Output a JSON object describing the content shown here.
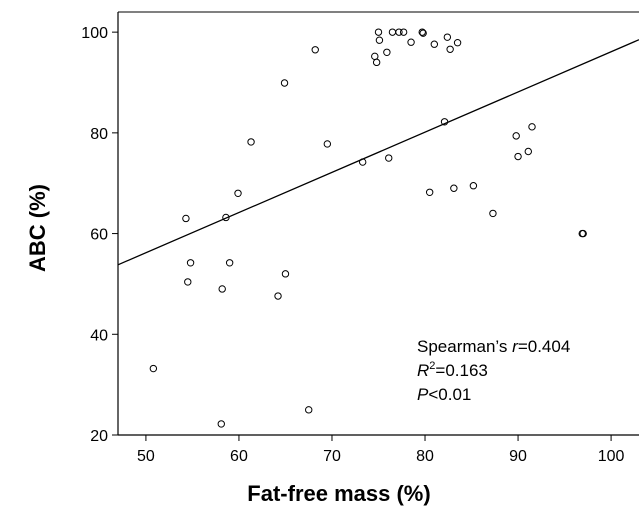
{
  "chart_data": {
    "type": "scatter",
    "title": "",
    "xlabel": "Fat-free mass (%)",
    "ylabel": "ABC (%)",
    "xlim": [
      47,
      103
    ],
    "ylim": [
      20,
      104
    ],
    "xticks": [
      50,
      60,
      70,
      80,
      90,
      100
    ],
    "yticks": [
      20,
      40,
      60,
      80,
      100
    ],
    "grid": false,
    "points": [
      {
        "x": 50.8,
        "y": 33.2
      },
      {
        "x": 54.3,
        "y": 63.0
      },
      {
        "x": 54.5,
        "y": 50.4
      },
      {
        "x": 54.8,
        "y": 54.2
      },
      {
        "x": 58.1,
        "y": 22.2
      },
      {
        "x": 58.2,
        "y": 49.0
      },
      {
        "x": 58.6,
        "y": 63.2
      },
      {
        "x": 59.0,
        "y": 54.2
      },
      {
        "x": 59.9,
        "y": 68.0
      },
      {
        "x": 61.3,
        "y": 78.2
      },
      {
        "x": 64.2,
        "y": 47.6
      },
      {
        "x": 64.9,
        "y": 89.9
      },
      {
        "x": 65.0,
        "y": 52.0
      },
      {
        "x": 67.5,
        "y": 25.0
      },
      {
        "x": 68.2,
        "y": 96.5
      },
      {
        "x": 69.5,
        "y": 77.8
      },
      {
        "x": 73.3,
        "y": 74.2
      },
      {
        "x": 74.6,
        "y": 95.2
      },
      {
        "x": 74.8,
        "y": 94.0
      },
      {
        "x": 75.0,
        "y": 100.0
      },
      {
        "x": 75.1,
        "y": 98.4
      },
      {
        "x": 75.9,
        "y": 96.0
      },
      {
        "x": 76.1,
        "y": 75.0
      },
      {
        "x": 76.5,
        "y": 100.0
      },
      {
        "x": 77.2,
        "y": 100.0
      },
      {
        "x": 77.7,
        "y": 100.0
      },
      {
        "x": 78.5,
        "y": 98.0
      },
      {
        "x": 79.7,
        "y": 100.0
      },
      {
        "x": 79.8,
        "y": 99.8
      },
      {
        "x": 80.5,
        "y": 68.2
      },
      {
        "x": 81.0,
        "y": 97.6
      },
      {
        "x": 82.1,
        "y": 82.2
      },
      {
        "x": 82.4,
        "y": 99.0
      },
      {
        "x": 82.7,
        "y": 96.6
      },
      {
        "x": 83.1,
        "y": 69.0
      },
      {
        "x": 83.5,
        "y": 97.9
      },
      {
        "x": 85.2,
        "y": 69.5
      },
      {
        "x": 87.3,
        "y": 64.0
      },
      {
        "x": 89.8,
        "y": 79.4
      },
      {
        "x": 90.0,
        "y": 75.3
      },
      {
        "x": 91.1,
        "y": 76.3
      },
      {
        "x": 91.5,
        "y": 81.2
      },
      {
        "x": 96.9,
        "y": 60.0
      },
      {
        "x": 97.0,
        "y": 60.0
      }
    ],
    "fit_line": {
      "x": [
        47,
        103
      ],
      "y": [
        53.8,
        98.5
      ]
    },
    "annotations": {
      "line1_prefix": "Spearman’s ",
      "line1_var": "r",
      "line1_value": "=0.404",
      "line2_var": "R",
      "line2_sup": "2",
      "line2_value": "=0.163",
      "line3_var": "P",
      "line3_value": "<0.01"
    },
    "colors": {
      "points": "#000000",
      "line": "#000000",
      "axes": "#000000"
    }
  }
}
